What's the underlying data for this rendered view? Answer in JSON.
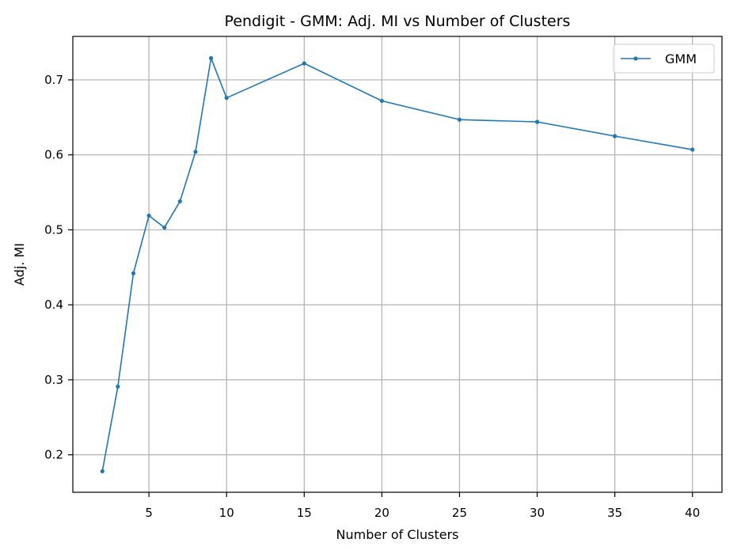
{
  "chart_data": {
    "type": "line",
    "title": "Pendigit - GMM: Adj. MI vs Number of Clusters",
    "xlabel": "Number of Clusters",
    "ylabel": "Adj. MI",
    "xlim": [
      0.1,
      41.9
    ],
    "ylim": [
      0.15,
      0.758
    ],
    "xticks": [
      5,
      10,
      15,
      20,
      25,
      30,
      35,
      40
    ],
    "yticks": [
      0.2,
      0.3,
      0.4,
      0.5,
      0.6,
      0.7
    ],
    "xtick_labels": [
      "5",
      "10",
      "15",
      "20",
      "25",
      "30",
      "35",
      "40"
    ],
    "ytick_labels": [
      "0.2",
      "0.3",
      "0.4",
      "0.5",
      "0.6",
      "0.7"
    ],
    "grid": true,
    "legend_position": "top-right",
    "series": [
      {
        "name": "GMM",
        "color": "#1f77b4",
        "x": [
          2,
          3,
          4,
          5,
          6,
          7,
          8,
          9,
          10,
          15,
          20,
          25,
          30,
          35,
          40
        ],
        "y": [
          0.178,
          0.291,
          0.442,
          0.519,
          0.503,
          0.538,
          0.604,
          0.729,
          0.676,
          0.722,
          0.672,
          0.647,
          0.644,
          0.625,
          0.607
        ]
      }
    ]
  }
}
